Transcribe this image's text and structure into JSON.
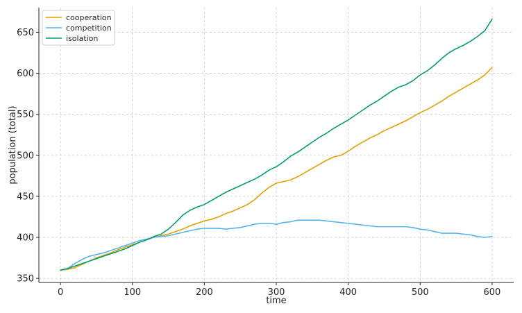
{
  "chart_data": {
    "type": "line",
    "title": "",
    "xlabel": "time",
    "ylabel": "population (total)",
    "xlim": [
      -30,
      630
    ],
    "ylim": [
      345,
      680
    ],
    "x_ticks": [
      0,
      100,
      200,
      300,
      400,
      500,
      600
    ],
    "y_ticks": [
      350,
      400,
      450,
      500,
      550,
      600,
      650
    ],
    "grid": true,
    "legend_position": "top-left",
    "x": [
      0,
      10,
      20,
      30,
      40,
      50,
      60,
      70,
      80,
      90,
      100,
      110,
      120,
      130,
      140,
      150,
      160,
      170,
      180,
      190,
      200,
      210,
      220,
      230,
      240,
      250,
      260,
      270,
      280,
      290,
      300,
      310,
      320,
      330,
      340,
      350,
      360,
      370,
      380,
      390,
      400,
      410,
      420,
      430,
      440,
      450,
      460,
      470,
      480,
      490,
      500,
      510,
      520,
      530,
      540,
      550,
      560,
      570,
      580,
      590,
      600
    ],
    "series": [
      {
        "name": "cooperation",
        "color": "#e69f00",
        "values": [
          360,
          361,
          363,
          367,
          371,
          375,
          378,
          381,
          385,
          388,
          391,
          394,
          397,
          400,
          402,
          404,
          407,
          410,
          414,
          417,
          420,
          422,
          425,
          429,
          432,
          436,
          440,
          446,
          454,
          461,
          466,
          468,
          470,
          474,
          479,
          484,
          489,
          494,
          498,
          500,
          505,
          511,
          516,
          521,
          525,
          530,
          534,
          538,
          542,
          547,
          552,
          556,
          561,
          566,
          572,
          577,
          582,
          587,
          592,
          598,
          607
        ]
      },
      {
        "name": "competition",
        "color": "#56b4e9",
        "values": [
          360,
          362,
          368,
          373,
          377,
          379,
          381,
          384,
          387,
          390,
          393,
          396,
          398,
          400,
          401,
          402,
          404,
          406,
          408,
          410,
          411,
          411,
          411,
          410,
          411,
          412,
          414,
          416,
          417,
          417,
          416,
          418,
          419,
          421,
          421,
          421,
          421,
          420,
          419,
          418,
          417,
          416,
          415,
          414,
          413,
          413,
          413,
          413,
          413,
          412,
          410,
          409,
          407,
          405,
          405,
          405,
          404,
          403,
          401,
          400,
          401
        ]
      },
      {
        "name": "isolation",
        "color": "#009e73",
        "values": [
          360,
          362,
          365,
          368,
          371,
          374,
          377,
          380,
          383,
          386,
          390,
          394,
          397,
          401,
          404,
          410,
          418,
          427,
          433,
          437,
          440,
          445,
          450,
          455,
          459,
          463,
          467,
          471,
          476,
          482,
          486,
          492,
          499,
          504,
          510,
          516,
          522,
          527,
          533,
          538,
          543,
          549,
          555,
          561,
          566,
          572,
          578,
          583,
          586,
          591,
          598,
          603,
          610,
          618,
          625,
          630,
          634,
          639,
          645,
          652,
          666
        ]
      }
    ]
  }
}
